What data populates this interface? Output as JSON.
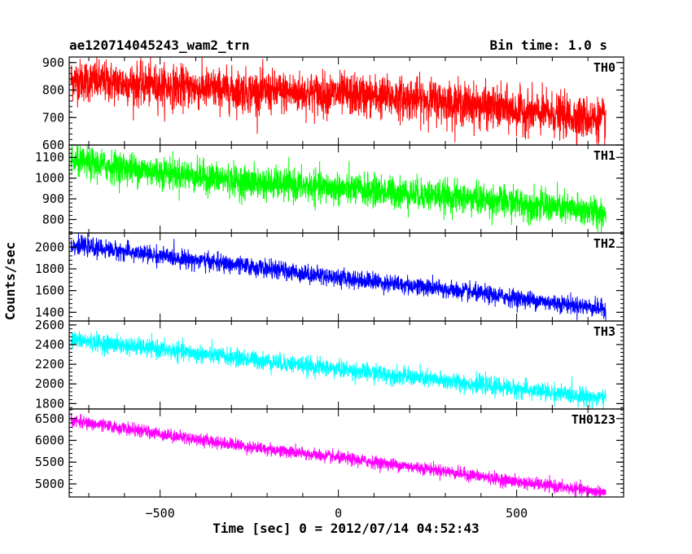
{
  "chart_data": {
    "type": "line",
    "title": "ae120714045243_wam2_trn",
    "subtitle": "Bin time: 1.0 s",
    "xlabel": "Time [sec] 0 = 2012/07/14 04:52:43",
    "ylabel": "Counts/sec",
    "xlim": [
      -755,
      800
    ],
    "xticks": [
      -500,
      0,
      500
    ],
    "xtick_labels": [
      "−500",
      "0",
      "500"
    ],
    "panels": [
      {
        "name": "TH0",
        "color": "#ff0000",
        "ylim": [
          600,
          920
        ],
        "yticks": [
          600,
          700,
          800,
          900
        ],
        "ytick_labels": [
          "600",
          "700",
          "800",
          "900"
        ],
        "x": [
          -750,
          -500,
          -250,
          0,
          250,
          500,
          750
        ],
        "trend": [
          838,
          815,
          795,
          785,
          765,
          725,
          690
        ],
        "noise": 38
      },
      {
        "name": "TH1",
        "color": "#00ff00",
        "ylim": [
          735,
          1160
        ],
        "yticks": [
          800,
          900,
          1000,
          1100
        ],
        "ytick_labels": [
          "800",
          "900",
          "1000",
          "1100"
        ],
        "x": [
          -750,
          -500,
          -250,
          0,
          250,
          500,
          750
        ],
        "trend": [
          1080,
          1030,
          980,
          950,
          920,
          880,
          830
        ],
        "noise": 38
      },
      {
        "name": "TH2",
        "color": "#0000ff",
        "ylim": [
          1320,
          2130
        ],
        "yticks": [
          1400,
          1600,
          1800,
          2000
        ],
        "ytick_labels": [
          "1400",
          "1600",
          "1800",
          "2000"
        ],
        "x": [
          -750,
          -500,
          -250,
          0,
          250,
          500,
          750
        ],
        "trend": [
          2020,
          1920,
          1820,
          1720,
          1630,
          1530,
          1430
        ],
        "noise": 40
      },
      {
        "name": "TH3",
        "color": "#00ffff",
        "ylim": [
          1745,
          2640
        ],
        "yticks": [
          1800,
          2000,
          2200,
          2400,
          2600
        ],
        "ytick_labels": [
          "1800",
          "2000",
          "2200",
          "2400",
          "2600"
        ],
        "x": [
          -750,
          -500,
          -250,
          0,
          250,
          500,
          750
        ],
        "trend": [
          2450,
          2350,
          2250,
          2150,
          2050,
          1950,
          1850
        ],
        "noise": 45
      },
      {
        "name": "TH0123",
        "color": "#ff00ff",
        "ylim": [
          4700,
          6720
        ],
        "yticks": [
          5000,
          5500,
          6000,
          6500
        ],
        "ytick_labels": [
          "5000",
          "5500",
          "6000",
          "6500"
        ],
        "x": [
          -750,
          -500,
          -250,
          0,
          250,
          500,
          750
        ],
        "trend": [
          6450,
          6150,
          5850,
          5600,
          5350,
          5050,
          4800
        ],
        "noise": 70
      }
    ]
  }
}
